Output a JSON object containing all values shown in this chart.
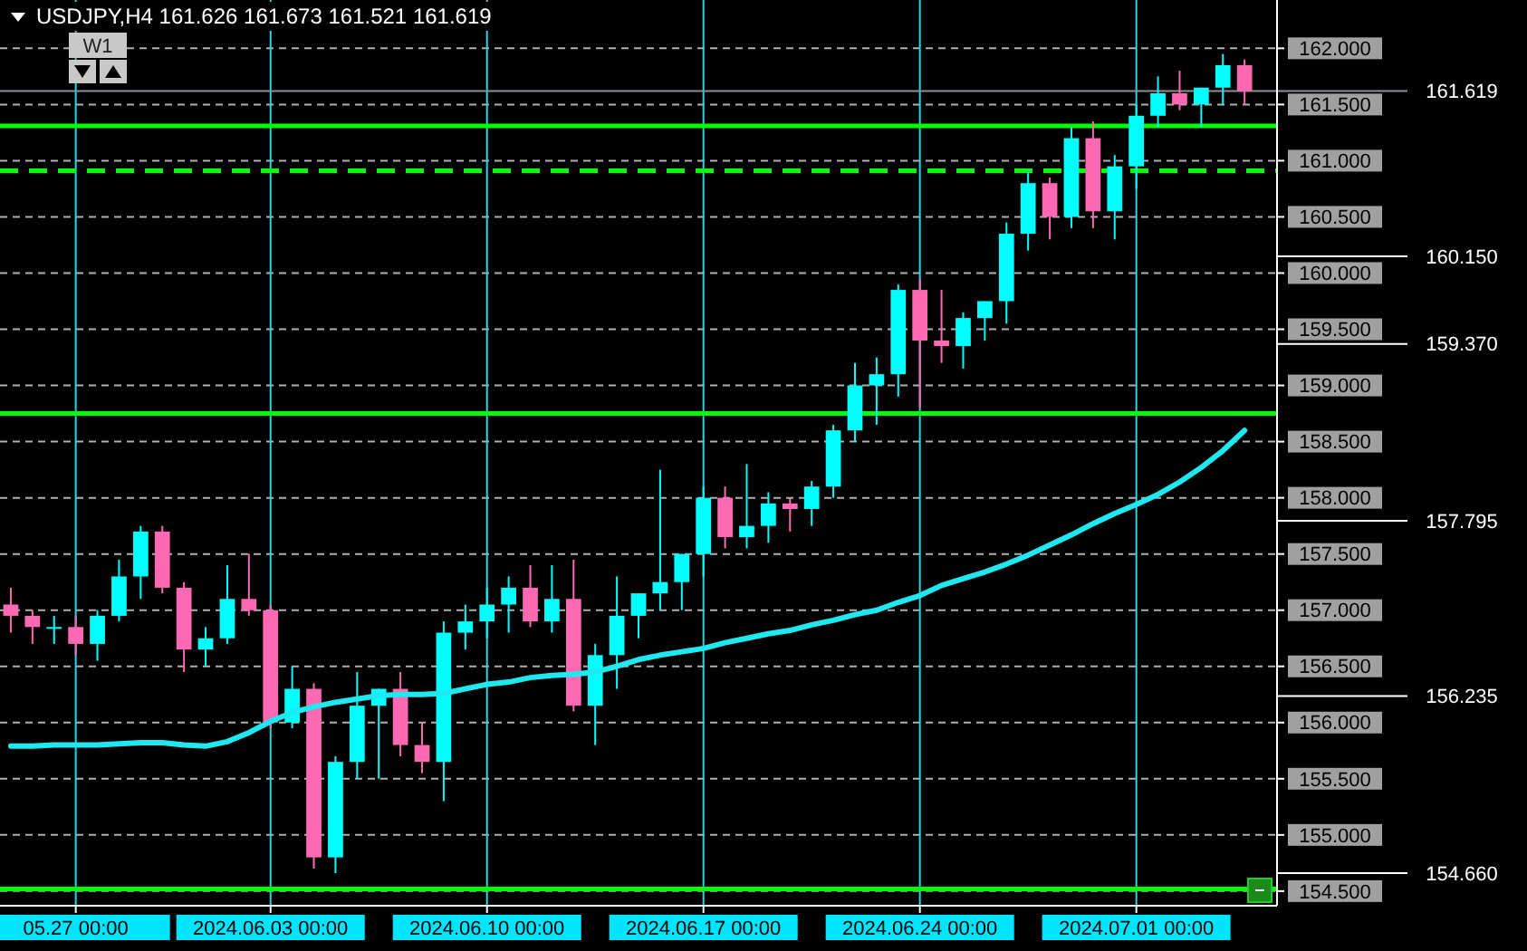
{
  "chart_data": {
    "type": "candlestick",
    "title": "USDJPY,H4  161.626 161.673 161.521 161.619",
    "annotations": [
      "W1"
    ],
    "categories": [
      null,
      null,
      null,
      "05.27 00:00",
      null,
      null,
      null,
      null,
      null,
      null,
      null,
      null,
      "2024.06.03 00:00",
      null,
      null,
      null,
      null,
      null,
      null,
      null,
      null,
      null,
      "2024.06.10 00:00",
      null,
      null,
      null,
      null,
      null,
      null,
      null,
      null,
      null,
      "2024.06.17 00:00",
      null,
      null,
      null,
      null,
      null,
      null,
      null,
      null,
      null,
      "2024.06.24 00:00",
      null,
      null,
      null,
      null,
      null,
      null,
      null,
      null,
      null,
      "2024.07.01 00:00",
      null,
      null,
      null,
      null,
      null
    ],
    "ohlc": [
      [
        157.05,
        157.2,
        156.8,
        156.95
      ],
      [
        156.95,
        157.0,
        156.7,
        156.85
      ],
      [
        156.85,
        156.95,
        156.7,
        156.85
      ],
      [
        156.85,
        156.95,
        156.6,
        156.7
      ],
      [
        156.7,
        157.0,
        156.55,
        156.95
      ],
      [
        156.95,
        157.45,
        156.9,
        157.3
      ],
      [
        157.3,
        157.75,
        157.1,
        157.7
      ],
      [
        157.7,
        157.75,
        157.15,
        157.2
      ],
      [
        157.2,
        157.25,
        156.45,
        156.65
      ],
      [
        156.65,
        156.85,
        156.5,
        156.75
      ],
      [
        156.75,
        157.4,
        156.7,
        157.1
      ],
      [
        157.1,
        157.5,
        156.95,
        157.0
      ],
      [
        157.0,
        157.05,
        155.95,
        156.0
      ],
      [
        156.0,
        156.5,
        155.95,
        156.3
      ],
      [
        156.3,
        156.35,
        154.7,
        154.8
      ],
      [
        154.8,
        155.7,
        154.66,
        155.65
      ],
      [
        155.65,
        156.45,
        155.5,
        156.15
      ],
      [
        156.15,
        156.3,
        155.5,
        156.3
      ],
      [
        156.3,
        156.45,
        155.7,
        155.8
      ],
      [
        155.8,
        156.0,
        155.55,
        155.65
      ],
      [
        155.65,
        156.9,
        155.3,
        156.8
      ],
      [
        156.8,
        157.05,
        156.65,
        156.9
      ],
      [
        156.9,
        157.2,
        156.75,
        157.05
      ],
      [
        157.05,
        157.3,
        156.8,
        157.2
      ],
      [
        157.2,
        157.4,
        156.85,
        156.9
      ],
      [
        156.9,
        157.4,
        156.8,
        157.1
      ],
      [
        157.1,
        157.45,
        156.1,
        156.15
      ],
      [
        156.15,
        156.7,
        155.8,
        156.6
      ],
      [
        156.6,
        157.3,
        156.3,
        156.95
      ],
      [
        156.95,
        157.15,
        156.75,
        157.15
      ],
      [
        157.15,
        158.25,
        157.0,
        157.25
      ],
      [
        157.25,
        157.5,
        157.0,
        157.5
      ],
      [
        157.5,
        158.1,
        157.3,
        158.0
      ],
      [
        158.0,
        158.1,
        157.55,
        157.65
      ],
      [
        157.65,
        158.3,
        157.55,
        157.75
      ],
      [
        157.75,
        158.05,
        157.6,
        157.95
      ],
      [
        157.95,
        158.0,
        157.7,
        157.9
      ],
      [
        157.9,
        158.15,
        157.75,
        158.1
      ],
      [
        158.1,
        158.65,
        158.0,
        158.6
      ],
      [
        158.6,
        159.2,
        158.5,
        159.0
      ],
      [
        159.0,
        159.25,
        158.65,
        159.1
      ],
      [
        159.1,
        159.9,
        158.9,
        159.85
      ],
      [
        159.85,
        159.95,
        158.8,
        159.4
      ],
      [
        159.4,
        159.85,
        159.2,
        159.35
      ],
      [
        159.35,
        159.65,
        159.15,
        159.6
      ],
      [
        159.6,
        159.75,
        159.4,
        159.75
      ],
      [
        159.75,
        160.45,
        159.55,
        160.35
      ],
      [
        160.35,
        160.9,
        160.2,
        160.8
      ],
      [
        160.8,
        160.85,
        160.3,
        160.5
      ],
      [
        160.5,
        161.3,
        160.4,
        161.2
      ],
      [
        161.2,
        161.35,
        160.4,
        160.55
      ],
      [
        160.55,
        161.05,
        160.3,
        160.95
      ],
      [
        160.95,
        161.5,
        160.75,
        161.4
      ],
      [
        161.4,
        161.75,
        161.3,
        161.6
      ],
      [
        161.6,
        161.8,
        161.45,
        161.5
      ],
      [
        161.5,
        161.65,
        161.3,
        161.65
      ],
      [
        161.65,
        161.95,
        161.5,
        161.85
      ],
      [
        161.85,
        161.9,
        161.5,
        161.619
      ]
    ],
    "colors": [
      "#ff69b4",
      "#ff69b4",
      "#00ffff",
      "#ff69b4",
      "#00ffff",
      "#00ffff",
      "#00ffff",
      "#ff69b4",
      "#ff69b4",
      "#00ffff",
      "#00ffff",
      "#ff69b4",
      "#ff69b4",
      "#00ffff",
      "#ff69b4",
      "#00ffff",
      "#00ffff",
      "#00ffff",
      "#ff69b4",
      "#ff69b4",
      "#00ffff",
      "#00ffff",
      "#00ffff",
      "#00ffff",
      "#ff69b4",
      "#00ffff",
      "#ff69b4",
      "#00ffff",
      "#00ffff",
      "#00ffff",
      "#00ffff",
      "#00ffff",
      "#00ffff",
      "#ff69b4",
      "#00ffff",
      "#00ffff",
      "#ff69b4",
      "#00ffff",
      "#00ffff",
      "#00ffff",
      "#00ffff",
      "#00ffff",
      "#ff69b4",
      "#ff69b4",
      "#00ffff",
      "#00ffff",
      "#00ffff",
      "#00ffff",
      "#ff69b4",
      "#00ffff",
      "#ff69b4",
      "#00ffff",
      "#00ffff",
      "#00ffff",
      "#ff69b4",
      "#00ffff",
      "#00ffff",
      "#ff69b4"
    ],
    "series": [
      {
        "type": "line",
        "color": "#1ee8f0",
        "values": [
          155.79,
          155.79,
          155.8,
          155.8,
          155.8,
          155.81,
          155.82,
          155.82,
          155.8,
          155.79,
          155.83,
          155.91,
          156.01,
          156.09,
          156.14,
          156.18,
          156.21,
          156.24,
          156.25,
          156.25,
          156.26,
          156.3,
          156.34,
          156.36,
          156.4,
          156.42,
          156.43,
          156.45,
          156.5,
          156.56,
          156.6,
          156.63,
          156.66,
          156.71,
          156.75,
          156.79,
          156.82,
          156.87,
          156.91,
          156.96,
          157.0,
          157.07,
          157.13,
          157.22,
          157.28,
          157.34,
          157.41,
          157.49,
          157.58,
          157.67,
          157.77,
          157.86,
          157.94,
          158.03,
          158.14,
          158.27,
          158.42,
          158.6
        ]
      }
    ],
    "ylim": [
      154.37,
      162.43
    ],
    "yticks": [
      {
        "value": 154.5,
        "label": "154.500"
      },
      {
        "value": 155,
        "label": "155.000"
      },
      {
        "value": 155.5,
        "label": "155.500"
      },
      {
        "value": 156,
        "label": "156.000"
      },
      {
        "value": 156.5,
        "label": "156.500"
      },
      {
        "value": 157,
        "label": "157.000"
      },
      {
        "value": 157.5,
        "label": "157.500"
      },
      {
        "value": 158,
        "label": "158.000"
      },
      {
        "value": 158.5,
        "label": "158.500"
      },
      {
        "value": 159,
        "label": "159.000"
      },
      {
        "value": 159.5,
        "label": "159.500"
      },
      {
        "value": 160,
        "label": "160.000"
      },
      {
        "value": 160.5,
        "label": "160.500"
      },
      {
        "value": 161,
        "label": "161.000"
      },
      {
        "value": 161.5,
        "label": "161.500"
      },
      {
        "value": 162,
        "label": "162.000"
      }
    ],
    "ref_lines": [
      {
        "axis": "y",
        "value": 161.31,
        "color": "#00ff00"
      },
      {
        "axis": "y",
        "value": 160.91,
        "color": "#00ff00",
        "line_style": "dashed"
      },
      {
        "axis": "y",
        "value": 158.75,
        "color": "#00ff00"
      },
      {
        "axis": "y",
        "value": 154.52,
        "color": "#00ff00"
      },
      {
        "axis": "y",
        "value": 161.619,
        "color": "#8a8f99",
        "label": "161.619"
      },
      {
        "axis": "y",
        "value": 160.15,
        "label": "160.150"
      },
      {
        "axis": "y",
        "value": 159.37,
        "label": "159.370"
      },
      {
        "axis": "y",
        "value": 157.795,
        "label": "157.795"
      },
      {
        "axis": "y",
        "value": 156.235,
        "label": "156.235"
      },
      {
        "axis": "y",
        "value": 154.66,
        "label": "154.660"
      }
    ],
    "grid": true
  }
}
